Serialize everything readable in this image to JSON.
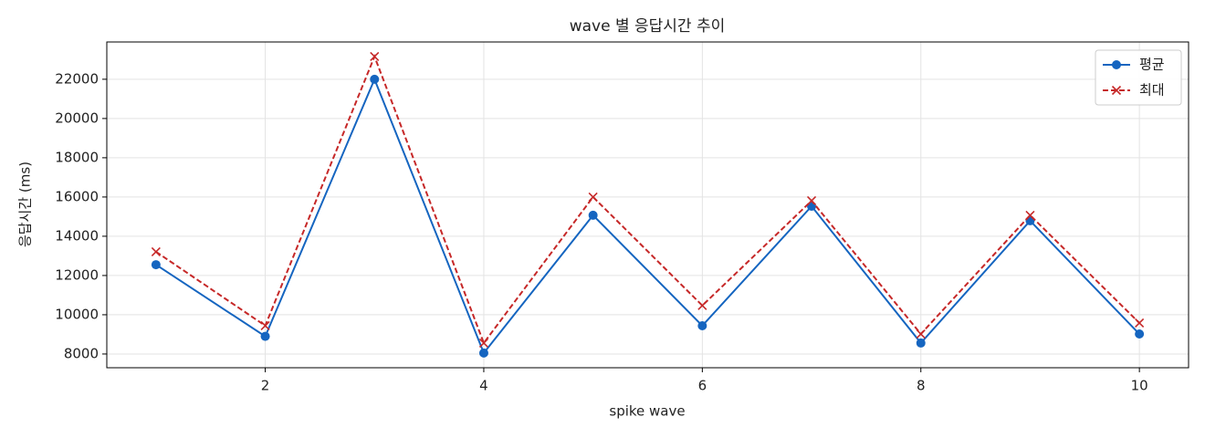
{
  "chart_data": {
    "type": "line",
    "title": "wave 별 응답시간 추이",
    "xlabel": "spike wave",
    "ylabel": "응답시간 (ms)",
    "x": [
      1,
      2,
      3,
      4,
      5,
      6,
      7,
      8,
      9,
      10
    ],
    "series": [
      {
        "name": "평균",
        "color": "#1565c0",
        "marker": "o",
        "linestyle": "solid",
        "values": [
          12550,
          8900,
          22000,
          8050,
          15070,
          9440,
          15530,
          8560,
          14790,
          9020
        ]
      },
      {
        "name": "최대",
        "color": "#c62828",
        "marker": "x",
        "linestyle": "dashed",
        "values": [
          13210,
          9440,
          23160,
          8560,
          16000,
          10470,
          15810,
          9020,
          15070,
          9580
        ]
      }
    ],
    "xlim": [
      0.55,
      10.45
    ],
    "ylim": [
      7300,
      23900
    ],
    "xticks": [
      2,
      4,
      6,
      8,
      10
    ],
    "yticks": [
      8000,
      10000,
      12000,
      14000,
      16000,
      18000,
      20000,
      22000
    ],
    "grid": true,
    "legend": "upper right"
  }
}
